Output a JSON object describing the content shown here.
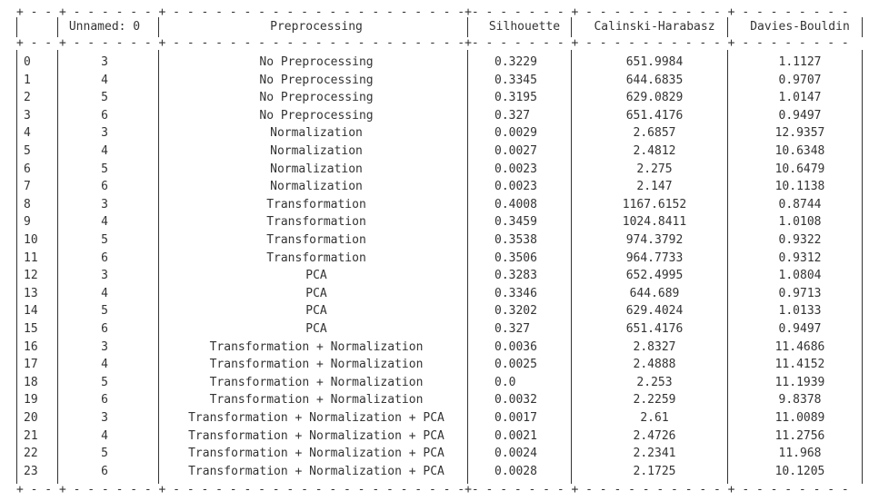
{
  "table": {
    "columns": [
      "",
      "Unnamed: 0",
      "Preprocessing",
      "Silhouette",
      "Calinski-Harabasz",
      "Davies-Bouldin"
    ],
    "rows": [
      [
        "0",
        "3",
        "No Preprocessing",
        "0.3229",
        "651.9984",
        "1.1127"
      ],
      [
        "1",
        "4",
        "No Preprocessing",
        "0.3345",
        "644.6835",
        "0.9707"
      ],
      [
        "2",
        "5",
        "No Preprocessing",
        "0.3195",
        "629.0829",
        "1.0147"
      ],
      [
        "3",
        "6",
        "No Preprocessing",
        "0.327",
        "651.4176",
        "0.9497"
      ],
      [
        "4",
        "3",
        "Normalization",
        "0.0029",
        "2.6857",
        "12.9357"
      ],
      [
        "5",
        "4",
        "Normalization",
        "0.0027",
        "2.4812",
        "10.6348"
      ],
      [
        "6",
        "5",
        "Normalization",
        "0.0023",
        "2.275",
        "10.6479"
      ],
      [
        "7",
        "6",
        "Normalization",
        "0.0023",
        "2.147",
        "10.1138"
      ],
      [
        "8",
        "3",
        "Transformation",
        "0.4008",
        "1167.6152",
        "0.8744"
      ],
      [
        "9",
        "4",
        "Transformation",
        "0.3459",
        "1024.8411",
        "1.0108"
      ],
      [
        "10",
        "5",
        "Transformation",
        "0.3538",
        "974.3792",
        "0.9322"
      ],
      [
        "11",
        "6",
        "Transformation",
        "0.3506",
        "964.7733",
        "0.9312"
      ],
      [
        "12",
        "3",
        "PCA",
        "0.3283",
        "652.4995",
        "1.0804"
      ],
      [
        "13",
        "4",
        "PCA",
        "0.3346",
        "644.689",
        "0.9713"
      ],
      [
        "14",
        "5",
        "PCA",
        "0.3202",
        "629.4024",
        "1.0133"
      ],
      [
        "15",
        "6",
        "PCA",
        "0.327",
        "651.4176",
        "0.9497"
      ],
      [
        "16",
        "3",
        "Transformation + Normalization",
        "0.0036",
        "2.8327",
        "11.4686"
      ],
      [
        "17",
        "4",
        "Transformation + Normalization",
        "0.0025",
        "2.4888",
        "11.4152"
      ],
      [
        "18",
        "5",
        "Transformation + Normalization",
        "0.0",
        "2.253",
        "11.1939"
      ],
      [
        "19",
        "6",
        "Transformation + Normalization",
        "0.0032",
        "2.2259",
        "9.8378"
      ],
      [
        "20",
        "3",
        "Transformation + Normalization + PCA",
        "0.0017",
        "2.61",
        "11.0089"
      ],
      [
        "21",
        "4",
        "Transformation + Normalization + PCA",
        "0.0021",
        "2.4726",
        "11.2756"
      ],
      [
        "22",
        "5",
        "Transformation + Normalization + PCA",
        "0.0024",
        "2.2341",
        "11.968"
      ],
      [
        "23",
        "6",
        "Transformation + Normalization + PCA",
        "0.0028",
        "2.1725",
        "10.1205"
      ]
    ]
  },
  "colors": {
    "text": "#333333",
    "background": "#ffffff"
  }
}
